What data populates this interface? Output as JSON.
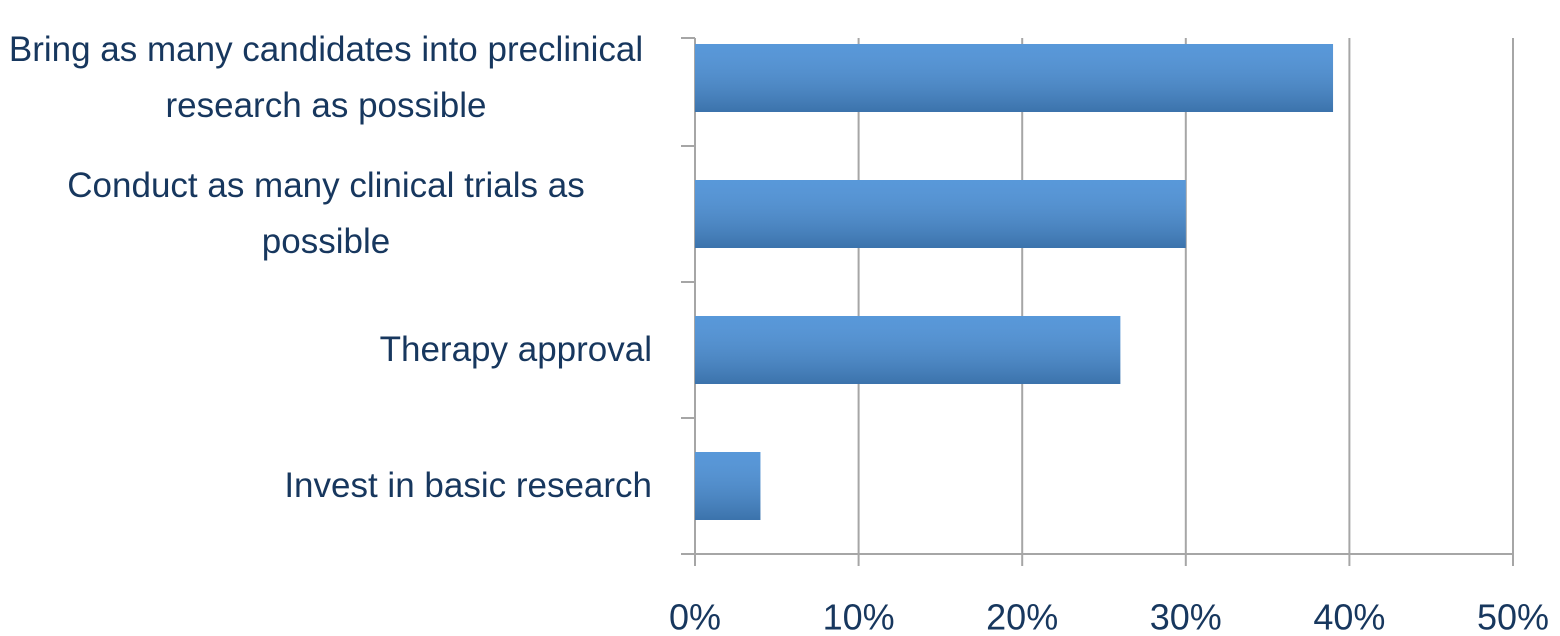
{
  "chart_data": {
    "type": "barh",
    "categories": [
      "Bring as many candidates into preclinical research as possible",
      "Conduct as many clinical trials as possible",
      "Therapy approval",
      "Invest in basic research"
    ],
    "values": [
      39,
      30,
      26,
      4
    ],
    "color": "#4a8fd6",
    "xlim": [
      0,
      50
    ],
    "xticks": [
      {
        "value": 0,
        "label": "0%"
      },
      {
        "value": 10,
        "label": "10%"
      },
      {
        "value": 20,
        "label": "20%"
      },
      {
        "value": 30,
        "label": "30%"
      },
      {
        "value": 40,
        "label": "40%"
      },
      {
        "value": 50,
        "label": "50%"
      }
    ],
    "grid": true
  }
}
